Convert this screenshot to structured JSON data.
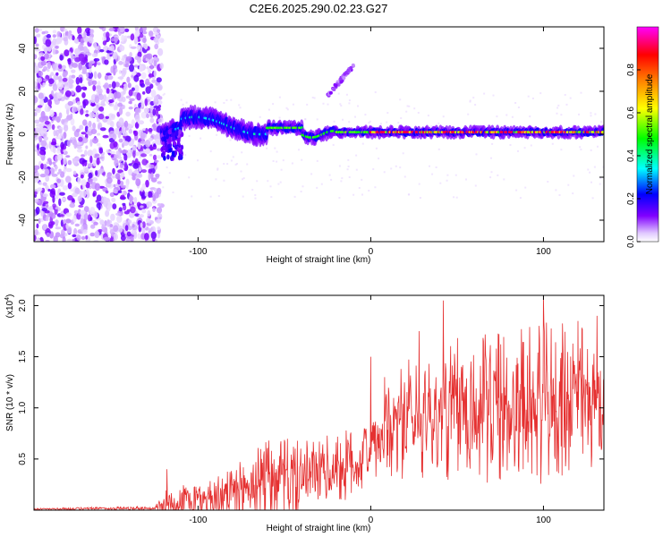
{
  "title": "C2E6.2025.290.02.23.G27",
  "chart_data": [
    {
      "type": "heatmap",
      "xlabel": "Height of straight line (km)",
      "ylabel": "Frequency (Hz)",
      "xlim": [
        -195,
        135
      ],
      "ylim": [
        -50,
        50
      ],
      "xticks": [
        -100,
        0,
        100
      ],
      "xtick_labels": [
        "-100",
        "0",
        "100"
      ],
      "yticks": [
        -40,
        -20,
        0,
        20,
        40
      ],
      "ytick_labels": [
        "-40",
        "-20",
        "0",
        "20",
        "40"
      ],
      "colorbar": {
        "label": "Normalized spectral amplitude",
        "range": [
          0,
          1
        ],
        "ticks": [
          0.0,
          0.2,
          0.4,
          0.6,
          0.8
        ],
        "tick_labels": [
          "0.0",
          "0.2",
          "0.4",
          "0.6",
          "0.8"
        ],
        "colormap": [
          "#ffffff",
          "#e0c8ff",
          "#8000ff",
          "#0000ff",
          "#00ffff",
          "#00ff00",
          "#ffff00",
          "#ff8000",
          "#ff0000",
          "#ff00ff"
        ]
      },
      "regions": [
        {
          "name": "noise",
          "x_range": [
            -195,
            -121
          ],
          "freq_range": [
            -50,
            50
          ],
          "amplitude": 0.15
        },
        {
          "name": "onset",
          "x_range": [
            -121,
            -60
          ],
          "freq_center": 5,
          "amplitude": 0.35
        },
        {
          "name": "carrier",
          "x_range": [
            -60,
            135
          ],
          "freq_center": 1,
          "amplitude": 0.9
        },
        {
          "name": "sidebranch",
          "x_range": [
            -25,
            -10
          ],
          "freq_range": [
            18,
            32
          ],
          "amplitude": 0.2
        }
      ]
    },
    {
      "type": "line",
      "xlabel": "Height of straight line (km)",
      "ylabel": "SNR (10 * v/v)",
      "y_scale_label": "(x10",
      "y_scale_exp": "4",
      "y_scale_close": ")",
      "xlim": [
        -195,
        135
      ],
      "ylim": [
        0,
        2.1
      ],
      "xticks": [
        -100,
        0,
        100
      ],
      "xtick_labels": [
        "-100",
        "0",
        "100"
      ],
      "yticks": [
        0.5,
        1.0,
        1.5,
        2.0
      ],
      "ytick_labels": [
        "0.5",
        "1.0",
        "1.5",
        "2.0"
      ],
      "line_color": "#e53030",
      "envelope": [
        {
          "x": -195,
          "mean": 0.01,
          "spread": 0.01
        },
        {
          "x": -125,
          "mean": 0.02,
          "spread": 0.02
        },
        {
          "x": -120,
          "mean": 0.06,
          "spread": 0.15
        },
        {
          "x": -100,
          "mean": 0.1,
          "spread": 0.2
        },
        {
          "x": -80,
          "mean": 0.15,
          "spread": 0.25
        },
        {
          "x": -62,
          "mean": 0.3,
          "spread": 0.45
        },
        {
          "x": -40,
          "mean": 0.32,
          "spread": 0.35
        },
        {
          "x": -10,
          "mean": 0.45,
          "spread": 0.35
        },
        {
          "x": 0,
          "mean": 0.6,
          "spread": 0.35
        },
        {
          "x": 20,
          "mean": 0.9,
          "spread": 0.6
        },
        {
          "x": 60,
          "mean": 1.0,
          "spread": 0.75
        },
        {
          "x": 100,
          "mean": 1.05,
          "spread": 0.8
        },
        {
          "x": 135,
          "mean": 1.1,
          "spread": 0.7
        }
      ],
      "peaks": [
        {
          "x": -118,
          "y": 0.4
        },
        {
          "x": -59,
          "y": 0.68
        },
        {
          "x": 0,
          "y": 1.5
        },
        {
          "x": 8,
          "y": 1.3
        },
        {
          "x": 28,
          "y": 1.75
        },
        {
          "x": 42,
          "y": 2.05
        },
        {
          "x": 100,
          "y": 2.1
        },
        {
          "x": 120,
          "y": 1.85
        },
        {
          "x": 131,
          "y": 1.9
        }
      ]
    }
  ]
}
